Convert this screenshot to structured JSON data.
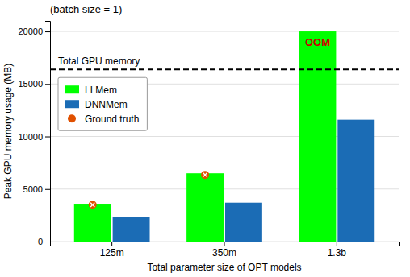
{
  "chart_data": {
    "type": "bar",
    "title": "(batch size = 1)",
    "xlabel": "Total parameter size of OPT models",
    "ylabel": "Peak GPU memory usage (MB)",
    "categories": [
      "125m",
      "350m",
      "1.3b"
    ],
    "series": [
      {
        "name": "LLMem",
        "color": "#00ff00",
        "values": [
          3600,
          6500,
          20000
        ]
      },
      {
        "name": "DNNMem",
        "color": "#1b6cb5",
        "values": [
          2300,
          3700,
          11600
        ]
      },
      {
        "name": "Ground truth",
        "type": "scatter",
        "marker": "circle",
        "color": "#e05000",
        "values": [
          3500,
          6350,
          null
        ]
      }
    ],
    "reference_lines": [
      {
        "value": 16384,
        "label": "Total GPU memory",
        "color": "#000000",
        "line_style": "dashed"
      }
    ],
    "annotations": [
      {
        "text": "OOM",
        "series": "LLMem",
        "category": "1.3b",
        "color": "#cc0000"
      }
    ],
    "ylim": [
      0,
      21000
    ],
    "yticks": [
      0,
      5000,
      10000,
      15000,
      20000
    ],
    "grid": true,
    "legend": "upper left"
  }
}
